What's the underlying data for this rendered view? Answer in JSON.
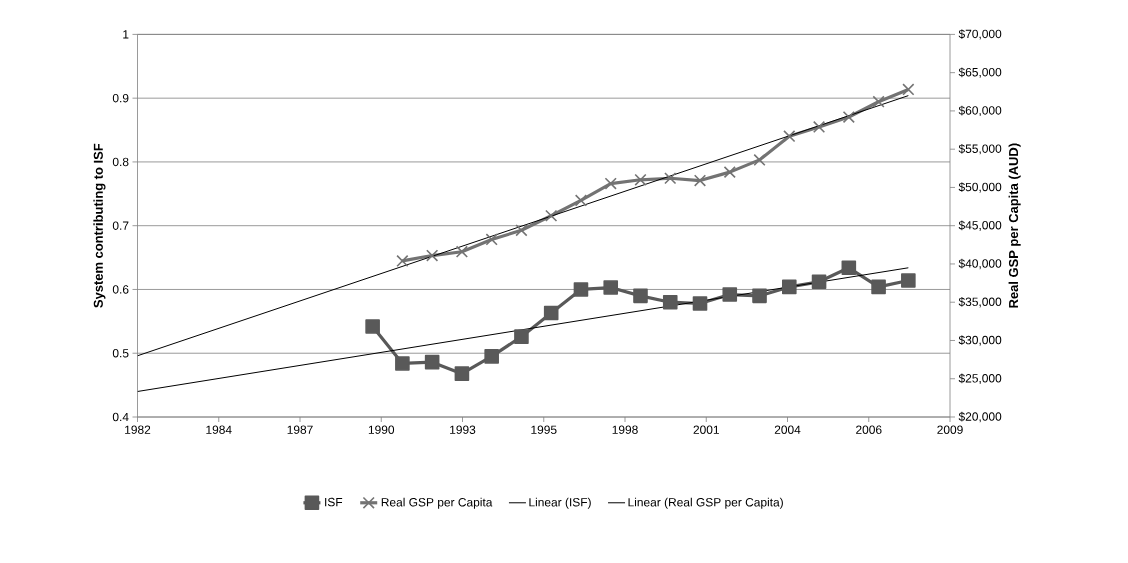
{
  "chart_data": {
    "type": "line",
    "ylabel": "System contributing to ISF",
    "y2label": "Real GSP per Capita (AUD)",
    "xlim": [
      1981.7,
      2009
    ],
    "xticks": [
      {
        "value": 1981.7,
        "label": "1982"
      },
      {
        "value": 1984.43,
        "label": "1984"
      },
      {
        "value": 1987.16,
        "label": "1987"
      },
      {
        "value": 1989.89,
        "label": "1990"
      },
      {
        "value": 1992.62,
        "label": "1993"
      },
      {
        "value": 1995.35,
        "label": "1995"
      },
      {
        "value": 1998.08,
        "label": "1998"
      },
      {
        "value": 2000.81,
        "label": "2001"
      },
      {
        "value": 2003.54,
        "label": "2004"
      },
      {
        "value": 2006.27,
        "label": "2006"
      },
      {
        "value": 2009,
        "label": "2009"
      }
    ],
    "ylim": [
      0.4,
      1
    ],
    "yticks": [
      0.4,
      0.5,
      0.6,
      0.7,
      0.8,
      0.9,
      1
    ],
    "y2lim": [
      20000,
      70000
    ],
    "y2ticks": [
      {
        "value": 20000,
        "label": "$20,000"
      },
      {
        "value": 25000,
        "label": "$25,000"
      },
      {
        "value": 30000,
        "label": "$30,000"
      },
      {
        "value": 35000,
        "label": "$35,000"
      },
      {
        "value": 40000,
        "label": "$40,000"
      },
      {
        "value": 45000,
        "label": "$45,000"
      },
      {
        "value": 50000,
        "label": "$50,000"
      },
      {
        "value": 55000,
        "label": "$55,000"
      },
      {
        "value": 60000,
        "label": "$60,000"
      },
      {
        "value": 65000,
        "label": "$65,000"
      },
      {
        "value": 70000,
        "label": "$70,000"
      }
    ],
    "grid": "y",
    "legend": "bottom",
    "series": [
      {
        "name": "ISF",
        "color": "#595959",
        "marker": "square",
        "x": [
          1989.6,
          1990.6,
          1991.6,
          1992.6,
          1993.6,
          1994.6,
          1995.6,
          1996.6,
          1997.6,
          1998.6,
          1999.6,
          2000.6,
          2001.6,
          2002.6,
          2003.6,
          2004.6,
          2005.6,
          2006.6,
          2007.6
        ],
        "values": [
          0.542,
          0.484,
          0.486,
          0.468,
          0.495,
          0.526,
          0.563,
          0.6,
          0.603,
          0.59,
          0.58,
          0.578,
          0.592,
          0.59,
          0.604,
          0.612,
          0.634,
          0.604,
          0.614
        ]
      },
      {
        "name": "Real GSP per Capita",
        "axis": "y2",
        "color": "#737373",
        "marker": "cross",
        "x": [
          1990.6,
          1991.6,
          1992.6,
          1993.6,
          1994.6,
          1995.6,
          1996.6,
          1997.6,
          1998.6,
          1999.6,
          2000.6,
          2001.6,
          2002.6,
          2003.6,
          2004.6,
          2005.6,
          2006.6,
          2007.6
        ],
        "values": [
          40400,
          41100,
          41600,
          43200,
          44400,
          46300,
          48300,
          50500,
          51000,
          51200,
          50900,
          52000,
          53600,
          56700,
          57900,
          59200,
          61200,
          62800
        ]
      },
      {
        "name": "Linear (ISF)",
        "color": "#000000",
        "marker": "none",
        "x": [
          1981.7,
          2007.6
        ],
        "values": [
          0.44,
          0.634
        ]
      },
      {
        "name": "Linear (Real GSP per Capita)",
        "axis": "y2",
        "color": "#000000",
        "marker": "none",
        "x": [
          1981.7,
          2007.6
        ],
        "values": [
          28000,
          62000
        ]
      }
    ]
  }
}
